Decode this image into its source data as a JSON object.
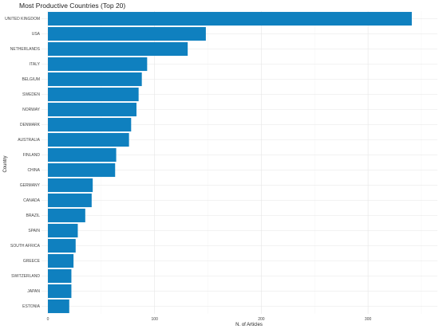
{
  "chart_data": {
    "type": "bar",
    "orientation": "horizontal",
    "title": "Most Productive Countries (Top 20)",
    "xlabel": "N. of Articles",
    "ylabel": "Country",
    "xlim": [
      -6,
      365
    ],
    "xticks": [
      0,
      100,
      200,
      300
    ],
    "grid": true,
    "bar_color": "#0F80BF",
    "categories": [
      "UNITED KINGDOM",
      "USA",
      "NETHERLANDS",
      "ITALY",
      "BELGIUM",
      "SWEDEN",
      "NORWAY",
      "DENMARK",
      "AUSTRALIA",
      "FINLAND",
      "CHINA",
      "GERMANY",
      "CANADA",
      "BRAZIL",
      "SPAIN",
      "SOUTH AFRICA",
      "GREECE",
      "SWITZERLAND",
      "JAPAN",
      "ESTONIA"
    ],
    "values": [
      341,
      148,
      131,
      93,
      88,
      85,
      83,
      78,
      76,
      64,
      63,
      42,
      41,
      35,
      28,
      26,
      24,
      22,
      22,
      20
    ]
  }
}
